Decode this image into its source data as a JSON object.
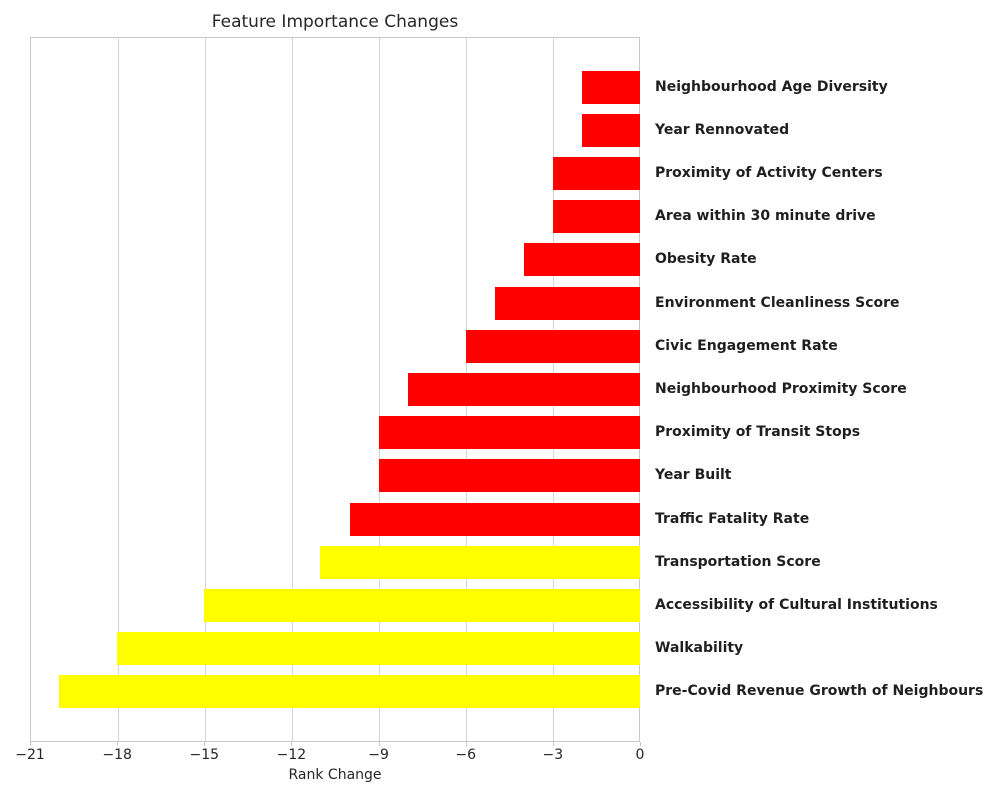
{
  "chart_data": {
    "type": "bar",
    "orientation": "horizontal",
    "title": "Feature Importance Changes",
    "xlabel": "Rank Change",
    "ylabel": "",
    "xlim": [
      -21,
      0
    ],
    "grid": true,
    "legend": "none",
    "categories": [
      "Neighbourhood Age Diversity",
      "Year Rennovated",
      "Proximity of Activity Centers",
      "Area within 30 minute drive",
      "Obesity Rate",
      "Environment Cleanliness Score",
      "Civic Engagement Rate",
      "Neighbourhood Proximity Score",
      "Proximity of Transit Stops",
      "Year Built",
      "Traffic Fatality Rate",
      "Transportation Score",
      "Accessibility of Cultural Institutions",
      "Walkability",
      "Pre-Covid Revenue Growth of Neighbours"
    ],
    "values": [
      -2,
      -2,
      -3,
      -3,
      -4,
      -5,
      -6,
      -8,
      -9,
      -9,
      -10,
      -11,
      -15,
      -18,
      -20
    ],
    "bar_colors": [
      "#ff0000",
      "#ff0000",
      "#ff0000",
      "#ff0000",
      "#ff0000",
      "#ff0000",
      "#ff0000",
      "#ff0000",
      "#ff0000",
      "#ff0000",
      "#ff0000",
      "#ffff00",
      "#ffff00",
      "#ffff00",
      "#ffff00"
    ],
    "xticks": [
      -21,
      -18,
      -15,
      -12,
      -9,
      -6,
      -3,
      0
    ],
    "xtick_labels": [
      "−21",
      "−18",
      "−15",
      "−12",
      "−9",
      "−6",
      "−3",
      "0"
    ]
  },
  "colors": {
    "red": "#ff0000",
    "yellow": "#ffff00",
    "grid": "#d4d4d4",
    "spine": "#c8c8c8",
    "text": "#262626"
  }
}
